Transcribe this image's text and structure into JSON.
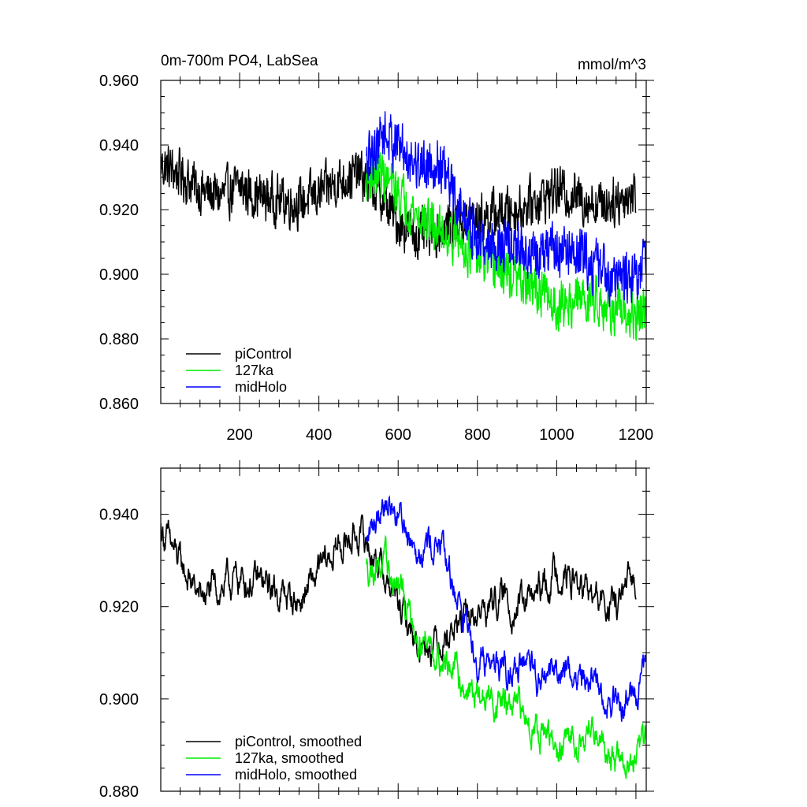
{
  "header": {
    "title": "0m-700m PO4, LabSea",
    "units": "mmol/m^3"
  },
  "colors": {
    "piControl": "#000000",
    "127ka": "#00ee00",
    "midHolo": "#0000ff"
  },
  "chart_data": [
    {
      "type": "line",
      "title": "0m-700m PO4, LabSea",
      "units": "mmol/m^3",
      "xlim": [
        1,
        1226
      ],
      "ylim": [
        0.86,
        0.96
      ],
      "x_ticks": [
        200,
        400,
        600,
        800,
        1000,
        1200
      ],
      "x_tick_labels": [
        "200",
        "400",
        "600",
        "800",
        "1000",
        "1200"
      ],
      "y_ticks": [
        0.86,
        0.88,
        0.9,
        0.92,
        0.94,
        0.96
      ],
      "y_tick_labels": [
        "0.860",
        "0.880",
        "0.900",
        "0.920",
        "0.940",
        "0.960"
      ],
      "legend_position": "bottom-left",
      "series": [
        {
          "name": "piControl",
          "color": "#000000",
          "x_range": [
            1,
            1200
          ],
          "x": [
            1,
            50,
            100,
            150,
            200,
            250,
            300,
            350,
            400,
            450,
            500,
            550,
            600,
            650,
            700,
            750,
            800,
            850,
            900,
            950,
            1000,
            1050,
            1100,
            1150,
            1200
          ],
          "values": [
            0.934,
            0.931,
            0.926,
            0.924,
            0.927,
            0.924,
            0.923,
            0.922,
            0.925,
            0.929,
            0.931,
            0.925,
            0.916,
            0.912,
            0.913,
            0.916,
            0.917,
            0.919,
            0.92,
            0.923,
            0.926,
            0.924,
            0.922,
            0.923,
            0.925
          ],
          "noise": 0.009
        },
        {
          "name": "127ka",
          "color": "#00ee00",
          "x_range": [
            520,
            1226
          ],
          "x": [
            520,
            550,
            600,
            650,
            700,
            750,
            800,
            850,
            900,
            950,
            1000,
            1050,
            1100,
            1150,
            1200,
            1226
          ],
          "values": [
            0.928,
            0.932,
            0.925,
            0.918,
            0.914,
            0.911,
            0.905,
            0.902,
            0.898,
            0.895,
            0.89,
            0.892,
            0.893,
            0.888,
            0.886,
            0.89
          ],
          "noise": 0.009
        },
        {
          "name": "midHolo",
          "color": "#0000ff",
          "x_range": [
            520,
            1226
          ],
          "x": [
            520,
            560,
            600,
            650,
            700,
            750,
            800,
            850,
            900,
            950,
            1000,
            1050,
            1100,
            1150,
            1200,
            1226
          ],
          "values": [
            0.933,
            0.944,
            0.94,
            0.934,
            0.935,
            0.922,
            0.91,
            0.909,
            0.908,
            0.905,
            0.908,
            0.906,
            0.903,
            0.899,
            0.9,
            0.904
          ],
          "noise": 0.01
        }
      ],
      "legend": [
        {
          "label": "piControl",
          "color": "#000000"
        },
        {
          "label": "127ka",
          "color": "#00ee00"
        },
        {
          "label": "midHolo",
          "color": "#0000ff"
        }
      ]
    },
    {
      "type": "line",
      "xlim": [
        1,
        1226
      ],
      "ylim": [
        0.88,
        0.95
      ],
      "x_ticks": [
        200,
        400,
        600,
        800,
        1000,
        1200
      ],
      "y_ticks": [
        0.88,
        0.9,
        0.92,
        0.94
      ],
      "y_tick_labels": [
        "0.880",
        "0.900",
        "0.920",
        "0.940"
      ],
      "legend_position": "bottom-left",
      "series": [
        {
          "name": "piControl, smoothed",
          "color": "#000000",
          "x_range": [
            1,
            1200
          ],
          "x": [
            1,
            50,
            100,
            150,
            200,
            250,
            300,
            350,
            400,
            450,
            500,
            550,
            600,
            650,
            700,
            750,
            800,
            850,
            900,
            950,
            1000,
            1050,
            1100,
            1150,
            1200
          ],
          "values": [
            0.937,
            0.929,
            0.922,
            0.924,
            0.926,
            0.925,
            0.923,
            0.921,
            0.927,
            0.933,
            0.936,
            0.93,
            0.92,
            0.912,
            0.913,
            0.916,
            0.918,
            0.922,
            0.92,
            0.922,
            0.928,
            0.925,
            0.921,
            0.92,
            0.926
          ],
          "noise": 0.004
        },
        {
          "name": "127ka, smoothed",
          "color": "#00ee00",
          "x_range": [
            520,
            1226
          ],
          "x": [
            520,
            550,
            600,
            650,
            700,
            750,
            800,
            850,
            900,
            950,
            1000,
            1050,
            1100,
            1150,
            1200,
            1226
          ],
          "values": [
            0.928,
            0.93,
            0.924,
            0.915,
            0.91,
            0.905,
            0.9,
            0.9,
            0.897,
            0.895,
            0.888,
            0.892,
            0.894,
            0.887,
            0.885,
            0.892
          ],
          "noise": 0.004
        },
        {
          "name": "midHolo, smoothed",
          "color": "#0000ff",
          "x_range": [
            520,
            1226
          ],
          "x": [
            520,
            560,
            600,
            650,
            700,
            750,
            800,
            850,
            900,
            950,
            1000,
            1050,
            1100,
            1150,
            1200,
            1226
          ],
          "values": [
            0.933,
            0.944,
            0.94,
            0.934,
            0.934,
            0.922,
            0.91,
            0.908,
            0.907,
            0.904,
            0.907,
            0.905,
            0.903,
            0.898,
            0.902,
            0.906
          ],
          "noise": 0.004
        }
      ],
      "legend": [
        {
          "label": "piControl, smoothed",
          "color": "#000000"
        },
        {
          "label": "127ka, smoothed",
          "color": "#00ee00"
        },
        {
          "label": "midHolo, smoothed",
          "color": "#0000ff"
        }
      ]
    }
  ]
}
